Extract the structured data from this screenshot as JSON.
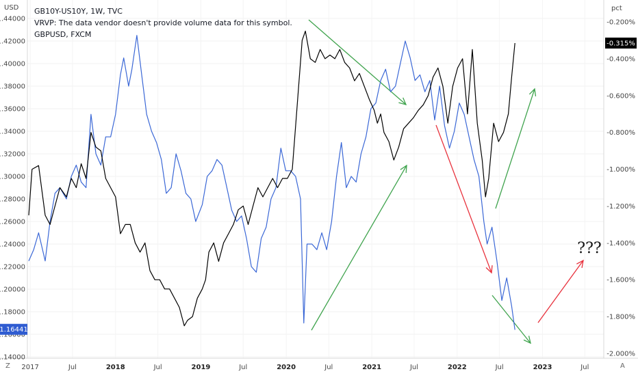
{
  "legend": {
    "line1": "GB10Y-US10Y, 1W, TVC",
    "line2": "VRVP: The data vendor doesn't provide volume data for this symbol.",
    "line3": "GBPUSD, FXCM"
  },
  "left_axis_unit": "USD",
  "right_axis_unit": "pct",
  "corner_left": "Z",
  "corner_right": "A",
  "annotation": "???",
  "colors": {
    "gbpusd": "#3a67d6",
    "spread": "#000000",
    "green_arrow": "#3fa34d",
    "red_arrow": "#e8303b",
    "badge_blue": "#2f5cd1",
    "badge_black": "#000000"
  },
  "chart_data": {
    "type": "line",
    "x_ticks": [
      "2017",
      "Jul",
      "2018",
      "Jul",
      "2019",
      "Jul",
      "2020",
      "Jul",
      "2021",
      "Jul",
      "2022",
      "Jul",
      "2023",
      "Jul"
    ],
    "x_bold_ticks": [
      "2018",
      "2019",
      "2020",
      "2021",
      "2022",
      "2023"
    ],
    "left_axis": {
      "ylim": [
        1.14,
        1.44
      ],
      "ticks": [
        "1.14000",
        "1.16000",
        "1.18000",
        "1.20000",
        "1.22000",
        "1.24000",
        "1.26000",
        "1.28000",
        "1.30000",
        "1.32000",
        "1.34000",
        "1.36000",
        "1.38000",
        "1.40000",
        "1.42000",
        "1.44000"
      ],
      "last_value": "1.16441"
    },
    "right_axis": {
      "ylim": [
        -2.0,
        -0.2
      ],
      "ticks": [
        "-0.200%",
        "-0.400%",
        "-0.600%",
        "-0.800%",
        "-1.000%",
        "-1.200%",
        "-1.400%",
        "-1.600%",
        "-1.800%",
        "-2.000%"
      ],
      "last_value": "-0.315%"
    },
    "series": [
      {
        "name": "GBPUSD, FXCM",
        "axis": "left",
        "points": [
          [
            "2016-12-26",
            1.225
          ],
          [
            "2017-01-16",
            1.235
          ],
          [
            "2017-02-06",
            1.25
          ],
          [
            "2017-03-06",
            1.225
          ],
          [
            "2017-03-27",
            1.26
          ],
          [
            "2017-04-17",
            1.285
          ],
          [
            "2017-05-08",
            1.29
          ],
          [
            "2017-06-05",
            1.28
          ],
          [
            "2017-06-26",
            1.3
          ],
          [
            "2017-07-17",
            1.31
          ],
          [
            "2017-08-07",
            1.295
          ],
          [
            "2017-08-28",
            1.29
          ],
          [
            "2017-09-18",
            1.355
          ],
          [
            "2017-10-09",
            1.32
          ],
          [
            "2017-10-30",
            1.31
          ],
          [
            "2017-11-20",
            1.335
          ],
          [
            "2017-12-11",
            1.335
          ],
          [
            "2018-01-01",
            1.355
          ],
          [
            "2018-01-22",
            1.39
          ],
          [
            "2018-02-05",
            1.405
          ],
          [
            "2018-02-26",
            1.38
          ],
          [
            "2018-03-12",
            1.395
          ],
          [
            "2018-04-02",
            1.425
          ],
          [
            "2018-04-23",
            1.39
          ],
          [
            "2018-05-14",
            1.355
          ],
          [
            "2018-06-04",
            1.34
          ],
          [
            "2018-06-25",
            1.33
          ],
          [
            "2018-07-16",
            1.315
          ],
          [
            "2018-08-06",
            1.285
          ],
          [
            "2018-08-27",
            1.29
          ],
          [
            "2018-09-17",
            1.32
          ],
          [
            "2018-10-08",
            1.305
          ],
          [
            "2018-10-29",
            1.285
          ],
          [
            "2018-11-19",
            1.28
          ],
          [
            "2018-12-10",
            1.26
          ],
          [
            "2019-01-07",
            1.275
          ],
          [
            "2019-01-28",
            1.3
          ],
          [
            "2019-02-18",
            1.305
          ],
          [
            "2019-03-11",
            1.315
          ],
          [
            "2019-04-01",
            1.31
          ],
          [
            "2019-04-22",
            1.29
          ],
          [
            "2019-05-13",
            1.27
          ],
          [
            "2019-06-03",
            1.26
          ],
          [
            "2019-06-24",
            1.265
          ],
          [
            "2019-07-15",
            1.245
          ],
          [
            "2019-08-05",
            1.22
          ],
          [
            "2019-08-26",
            1.215
          ],
          [
            "2019-09-16",
            1.245
          ],
          [
            "2019-10-07",
            1.255
          ],
          [
            "2019-10-28",
            1.28
          ],
          [
            "2019-11-18",
            1.29
          ],
          [
            "2019-12-09",
            1.325
          ],
          [
            "2019-12-30",
            1.305
          ],
          [
            "2020-01-20",
            1.305
          ],
          [
            "2020-02-10",
            1.3
          ],
          [
            "2020-03-02",
            1.28
          ],
          [
            "2020-03-16",
            1.17
          ],
          [
            "2020-03-30",
            1.24
          ],
          [
            "2020-04-20",
            1.24
          ],
          [
            "2020-05-11",
            1.235
          ],
          [
            "2020-06-01",
            1.25
          ],
          [
            "2020-06-22",
            1.235
          ],
          [
            "2020-07-13",
            1.26
          ],
          [
            "2020-08-03",
            1.3
          ],
          [
            "2020-08-24",
            1.33
          ],
          [
            "2020-09-14",
            1.29
          ],
          [
            "2020-10-05",
            1.3
          ],
          [
            "2020-10-26",
            1.295
          ],
          [
            "2020-11-16",
            1.32
          ],
          [
            "2020-12-07",
            1.335
          ],
          [
            "2020-12-28",
            1.36
          ],
          [
            "2021-01-18",
            1.365
          ],
          [
            "2021-02-08",
            1.385
          ],
          [
            "2021-03-01",
            1.395
          ],
          [
            "2021-03-22",
            1.375
          ],
          [
            "2021-04-12",
            1.38
          ],
          [
            "2021-05-03",
            1.4
          ],
          [
            "2021-05-24",
            1.42
          ],
          [
            "2021-06-14",
            1.405
          ],
          [
            "2021-07-05",
            1.385
          ],
          [
            "2021-07-26",
            1.39
          ],
          [
            "2021-08-16",
            1.375
          ],
          [
            "2021-09-06",
            1.385
          ],
          [
            "2021-09-27",
            1.35
          ],
          [
            "2021-10-18",
            1.38
          ],
          [
            "2021-11-08",
            1.345
          ],
          [
            "2021-11-29",
            1.325
          ],
          [
            "2021-12-20",
            1.34
          ],
          [
            "2022-01-10",
            1.365
          ],
          [
            "2022-01-31",
            1.355
          ],
          [
            "2022-02-21",
            1.335
          ],
          [
            "2022-03-14",
            1.315
          ],
          [
            "2022-04-04",
            1.3
          ],
          [
            "2022-04-25",
            1.26
          ],
          [
            "2022-05-09",
            1.24
          ],
          [
            "2022-05-30",
            1.255
          ],
          [
            "2022-06-20",
            1.225
          ],
          [
            "2022-07-11",
            1.19
          ],
          [
            "2022-08-01",
            1.21
          ],
          [
            "2022-08-22",
            1.185
          ],
          [
            "2022-09-05",
            1.164
          ]
        ]
      },
      {
        "name": "GB10Y-US10Y, 1W, TVC",
        "axis": "right",
        "points": [
          [
            "2016-12-26",
            -1.25
          ],
          [
            "2017-01-09",
            -1.0
          ],
          [
            "2017-02-06",
            -0.98
          ],
          [
            "2017-03-06",
            -1.25
          ],
          [
            "2017-03-27",
            -1.3
          ],
          [
            "2017-04-17",
            -1.2
          ],
          [
            "2017-05-08",
            -1.1
          ],
          [
            "2017-06-05",
            -1.15
          ],
          [
            "2017-06-26",
            -1.05
          ],
          [
            "2017-07-17",
            -1.1
          ],
          [
            "2017-08-07",
            -0.97
          ],
          [
            "2017-08-28",
            -1.05
          ],
          [
            "2017-09-18",
            -0.8
          ],
          [
            "2017-10-09",
            -0.88
          ],
          [
            "2017-10-30",
            -0.9
          ],
          [
            "2017-11-20",
            -1.05
          ],
          [
            "2017-12-11",
            -1.1
          ],
          [
            "2018-01-01",
            -1.15
          ],
          [
            "2018-01-22",
            -1.35
          ],
          [
            "2018-02-12",
            -1.3
          ],
          [
            "2018-03-05",
            -1.3
          ],
          [
            "2018-03-26",
            -1.4
          ],
          [
            "2018-04-16",
            -1.45
          ],
          [
            "2018-05-07",
            -1.4
          ],
          [
            "2018-05-28",
            -1.55
          ],
          [
            "2018-06-18",
            -1.6
          ],
          [
            "2018-07-09",
            -1.6
          ],
          [
            "2018-07-30",
            -1.65
          ],
          [
            "2018-08-20",
            -1.65
          ],
          [
            "2018-09-10",
            -1.7
          ],
          [
            "2018-10-01",
            -1.75
          ],
          [
            "2018-10-22",
            -1.85
          ],
          [
            "2018-11-05",
            -1.82
          ],
          [
            "2018-11-26",
            -1.8
          ],
          [
            "2018-12-17",
            -1.7
          ],
          [
            "2019-01-07",
            -1.65
          ],
          [
            "2019-01-21",
            -1.6
          ],
          [
            "2019-02-04",
            -1.45
          ],
          [
            "2019-02-25",
            -1.4
          ],
          [
            "2019-03-18",
            -1.5
          ],
          [
            "2019-04-08",
            -1.4
          ],
          [
            "2019-04-29",
            -1.35
          ],
          [
            "2019-05-20",
            -1.3
          ],
          [
            "2019-06-10",
            -1.22
          ],
          [
            "2019-07-01",
            -1.2
          ],
          [
            "2019-07-22",
            -1.3
          ],
          [
            "2019-08-12",
            -1.2
          ],
          [
            "2019-09-02",
            -1.1
          ],
          [
            "2019-09-23",
            -1.15
          ],
          [
            "2019-10-14",
            -1.1
          ],
          [
            "2019-11-04",
            -1.05
          ],
          [
            "2019-11-25",
            -1.1
          ],
          [
            "2019-12-16",
            -1.05
          ],
          [
            "2020-01-06",
            -1.05
          ],
          [
            "2020-01-27",
            -1.0
          ],
          [
            "2020-02-17",
            -0.65
          ],
          [
            "2020-03-09",
            -0.3
          ],
          [
            "2020-03-23",
            -0.25
          ],
          [
            "2020-04-13",
            -0.4
          ],
          [
            "2020-05-04",
            -0.42
          ],
          [
            "2020-05-25",
            -0.35
          ],
          [
            "2020-06-15",
            -0.4
          ],
          [
            "2020-07-06",
            -0.38
          ],
          [
            "2020-07-27",
            -0.4
          ],
          [
            "2020-08-17",
            -0.35
          ],
          [
            "2020-09-07",
            -0.42
          ],
          [
            "2020-09-28",
            -0.45
          ],
          [
            "2020-10-19",
            -0.52
          ],
          [
            "2020-11-09",
            -0.48
          ],
          [
            "2020-11-30",
            -0.55
          ],
          [
            "2020-12-21",
            -0.62
          ],
          [
            "2021-01-11",
            -0.68
          ],
          [
            "2021-01-25",
            -0.75
          ],
          [
            "2021-02-08",
            -0.7
          ],
          [
            "2021-02-22",
            -0.8
          ],
          [
            "2021-03-15",
            -0.85
          ],
          [
            "2021-04-05",
            -0.95
          ],
          [
            "2021-04-26",
            -0.88
          ],
          [
            "2021-05-17",
            -0.78
          ],
          [
            "2021-06-07",
            -0.75
          ],
          [
            "2021-06-28",
            -0.72
          ],
          [
            "2021-07-19",
            -0.68
          ],
          [
            "2021-08-09",
            -0.65
          ],
          [
            "2021-08-30",
            -0.6
          ],
          [
            "2021-09-20",
            -0.5
          ],
          [
            "2021-10-11",
            -0.45
          ],
          [
            "2021-11-01",
            -0.55
          ],
          [
            "2021-11-22",
            -0.75
          ],
          [
            "2021-12-13",
            -0.55
          ],
          [
            "2022-01-03",
            -0.45
          ],
          [
            "2022-01-24",
            -0.4
          ],
          [
            "2022-02-14",
            -0.7
          ],
          [
            "2022-03-07",
            -0.35
          ],
          [
            "2022-03-28",
            -0.75
          ],
          [
            "2022-04-18",
            -0.95
          ],
          [
            "2022-05-02",
            -1.15
          ],
          [
            "2022-05-16",
            -1.05
          ],
          [
            "2022-06-06",
            -0.75
          ],
          [
            "2022-06-27",
            -0.85
          ],
          [
            "2022-07-18",
            -0.8
          ],
          [
            "2022-08-08",
            -0.7
          ],
          [
            "2022-08-22",
            -0.5
          ],
          [
            "2022-09-05",
            -0.315
          ]
        ]
      }
    ]
  }
}
